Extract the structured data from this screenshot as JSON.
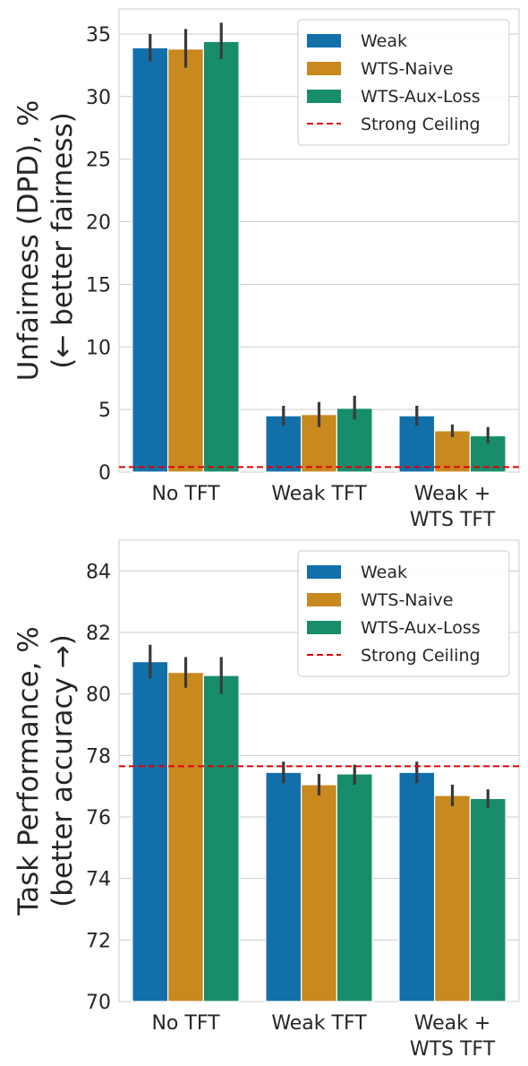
{
  "colors": {
    "Weak": "#1170aa",
    "WTS-Naive": "#c8891e",
    "WTS-Aux-Loss": "#178d6b",
    "ceiling": "#e00000",
    "grid": "#cccccc",
    "errorbar": "#3a3a3a"
  },
  "chart_data": [
    {
      "type": "bar",
      "ylabel_line1": "Unfairness (DPD), %",
      "ylabel_line2": "(← better fairness)",
      "categories": [
        [
          "No TFT"
        ],
        [
          "Weak TFT"
        ],
        [
          "Weak +",
          "WTS TFT"
        ]
      ],
      "ylim": [
        0,
        37
      ],
      "yticks": [
        0,
        5,
        10,
        15,
        20,
        25,
        30,
        35
      ],
      "grid": true,
      "legend_position": "top-right",
      "series": [
        {
          "name": "Weak",
          "values": [
            33.9,
            4.5,
            4.5
          ],
          "err_low": [
            32.8,
            3.7,
            3.7
          ],
          "err_high": [
            35.0,
            5.3,
            5.3
          ]
        },
        {
          "name": "WTS-Naive",
          "values": [
            33.8,
            4.6,
            3.3
          ],
          "err_low": [
            32.3,
            3.6,
            2.8
          ],
          "err_high": [
            35.4,
            5.6,
            3.8
          ]
        },
        {
          "name": "WTS-Aux-Loss",
          "values": [
            34.4,
            5.1,
            2.9
          ],
          "err_low": [
            33.0,
            4.2,
            2.3
          ],
          "err_high": [
            35.9,
            6.1,
            3.6
          ]
        }
      ],
      "ceiling": {
        "name": "Strong Ceiling",
        "value": 0.4
      }
    },
    {
      "type": "bar",
      "ylabel_line1": "Task Performance, %",
      "ylabel_line2": "(better accuracy →)",
      "categories": [
        [
          "No TFT"
        ],
        [
          "Weak TFT"
        ],
        [
          "Weak +",
          "WTS TFT"
        ]
      ],
      "ylim": [
        70,
        85
      ],
      "yticks": [
        70,
        72,
        74,
        76,
        78,
        80,
        82,
        84
      ],
      "grid": true,
      "legend_position": "top-right",
      "series": [
        {
          "name": "Weak",
          "values": [
            81.05,
            77.45,
            77.45
          ],
          "err_low": [
            80.5,
            77.1,
            77.1
          ],
          "err_high": [
            81.6,
            77.8,
            77.8
          ]
        },
        {
          "name": "WTS-Naive",
          "values": [
            80.7,
            77.05,
            76.7
          ],
          "err_low": [
            80.2,
            76.7,
            76.35
          ],
          "err_high": [
            81.2,
            77.4,
            77.05
          ]
        },
        {
          "name": "WTS-Aux-Loss",
          "values": [
            80.6,
            77.4,
            76.6
          ],
          "err_low": [
            80.0,
            77.05,
            76.3
          ],
          "err_high": [
            81.2,
            77.7,
            76.9
          ]
        }
      ],
      "ceiling": {
        "name": "Strong Ceiling",
        "value": 77.65
      }
    }
  ]
}
